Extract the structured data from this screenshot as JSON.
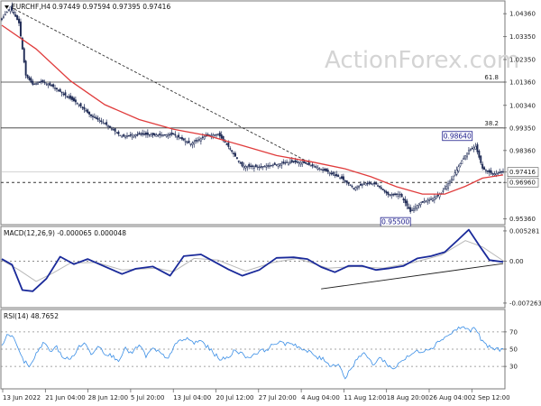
{
  "chart_data": [
    {
      "type": "candlestick",
      "panel": "price",
      "title": "EURCHF,H4",
      "ohlc_readout": "0.97449 0.97594 0.97395 0.97416",
      "watermark": "ActionForex.com",
      "ylim": [
        0.9515,
        1.0488
      ],
      "y_ticks": [
        "1.04360",
        "1.03350",
        "1.02350",
        "1.01360",
        "1.00340",
        "0.99350",
        "0.98360",
        "0.97416",
        "0.96960",
        "0.95360"
      ],
      "y_tick_values": [
        1.0436,
        1.0335,
        1.0235,
        1.0136,
        1.0034,
        0.9935,
        0.9836,
        0.97416,
        0.9696,
        0.9536
      ],
      "x_labels": [
        "13 Jun 2022",
        "21 Jun 04:00",
        "28 Jun 12:00",
        "5 Jul 20:00",
        "13 Jul 04:00",
        "20 Jul 12:00",
        "27 Jul 20:00",
        "4 Aug 04:00",
        "11 Aug 12:00",
        "18 Aug 20:00",
        "26 Aug 04:00",
        "2 Sep 12:00"
      ],
      "fib_levels": [
        {
          "label": "61.8",
          "value": 1.0136
        },
        {
          "label": "38.2",
          "value": 0.9935
        }
      ],
      "support_dashed": 0.9696,
      "current_price": 0.97416,
      "annotations": [
        {
          "text": "0.98640",
          "value": 0.9864
        },
        {
          "text": "0.95500",
          "value": 0.955
        }
      ],
      "anchors": [
        {
          "x": 0,
          "y": 1.0412
        },
        {
          "x": 5,
          "y": 1.0465
        },
        {
          "x": 10,
          "y": 1.0395
        },
        {
          "x": 14,
          "y": 1.0166
        },
        {
          "x": 18,
          "y": 1.0126
        },
        {
          "x": 24,
          "y": 1.0138
        },
        {
          "x": 30,
          "y": 1.0116
        },
        {
          "x": 36,
          "y": 1.0083
        },
        {
          "x": 44,
          "y": 1.0044
        },
        {
          "x": 52,
          "y": 0.9988
        },
        {
          "x": 60,
          "y": 0.9955
        },
        {
          "x": 70,
          "y": 0.9897
        },
        {
          "x": 80,
          "y": 0.9907
        },
        {
          "x": 90,
          "y": 0.9904
        },
        {
          "x": 100,
          "y": 0.9907
        },
        {
          "x": 110,
          "y": 0.9865
        },
        {
          "x": 118,
          "y": 0.9897
        },
        {
          "x": 126,
          "y": 0.9908
        },
        {
          "x": 132,
          "y": 0.9853
        },
        {
          "x": 140,
          "y": 0.9768
        },
        {
          "x": 150,
          "y": 0.9764
        },
        {
          "x": 160,
          "y": 0.9775
        },
        {
          "x": 168,
          "y": 0.9786
        },
        {
          "x": 175,
          "y": 0.9784
        },
        {
          "x": 182,
          "y": 0.9766
        },
        {
          "x": 190,
          "y": 0.9743
        },
        {
          "x": 198,
          "y": 0.9714
        },
        {
          "x": 205,
          "y": 0.9671
        },
        {
          "x": 212,
          "y": 0.9693
        },
        {
          "x": 218,
          "y": 0.9689
        },
        {
          "x": 225,
          "y": 0.9643
        },
        {
          "x": 232,
          "y": 0.9645
        },
        {
          "x": 238,
          "y": 0.9568
        },
        {
          "x": 244,
          "y": 0.9609
        },
        {
          "x": 250,
          "y": 0.9623
        },
        {
          "x": 256,
          "y": 0.9649
        },
        {
          "x": 262,
          "y": 0.9711
        },
        {
          "x": 268,
          "y": 0.9792
        },
        {
          "x": 272,
          "y": 0.9836
        },
        {
          "x": 276,
          "y": 0.9854
        },
        {
          "x": 280,
          "y": 0.9758
        },
        {
          "x": 286,
          "y": 0.9732
        },
        {
          "x": 292,
          "y": 0.9742
        }
      ],
      "moving_average": [
        {
          "x": 0,
          "y": 1.0385
        },
        {
          "x": 20,
          "y": 1.0281
        },
        {
          "x": 40,
          "y": 1.0141
        },
        {
          "x": 60,
          "y": 1.0037
        },
        {
          "x": 80,
          "y": 0.9972
        },
        {
          "x": 100,
          "y": 0.9929
        },
        {
          "x": 120,
          "y": 0.9901
        },
        {
          "x": 140,
          "y": 0.9858
        },
        {
          "x": 160,
          "y": 0.9814
        },
        {
          "x": 180,
          "y": 0.9787
        },
        {
          "x": 200,
          "y": 0.9756
        },
        {
          "x": 215,
          "y": 0.9721
        },
        {
          "x": 230,
          "y": 0.9677
        },
        {
          "x": 245,
          "y": 0.9645
        },
        {
          "x": 258,
          "y": 0.9645
        },
        {
          "x": 270,
          "y": 0.9679
        },
        {
          "x": 280,
          "y": 0.9715
        },
        {
          "x": 292,
          "y": 0.9729
        }
      ],
      "downtrend_line": [
        {
          "x": 5,
          "y": 1.0465
        },
        {
          "x": 180,
          "y": 0.978
        }
      ],
      "colors": {
        "candle_up": "#ffffff",
        "candle_down": "#1e2a55",
        "ma": "#e03c3c",
        "levels": "#333333",
        "tag_border": "#1a1a8a"
      }
    },
    {
      "type": "line",
      "panel": "macd",
      "title": "MACD(12,26,9) -0.000065 0.000048",
      "y_ticks": [
        "0.005281",
        "0.00",
        "-0.007263"
      ],
      "y_tick_values": [
        0.005281,
        0.0,
        -0.007263
      ],
      "ylim": [
        -0.0079,
        0.0059
      ],
      "series": [
        {
          "name": "MACD",
          "points": [
            {
              "x": 0,
              "y": 0.0004
            },
            {
              "x": 6,
              "y": -0.0006
            },
            {
              "x": 12,
              "y": -0.005
            },
            {
              "x": 18,
              "y": -0.0052
            },
            {
              "x": 26,
              "y": -0.003
            },
            {
              "x": 34,
              "y": 0.0008
            },
            {
              "x": 42,
              "y": -0.0005
            },
            {
              "x": 50,
              "y": 0.0004
            },
            {
              "x": 60,
              "y": -0.0009
            },
            {
              "x": 70,
              "y": -0.0022
            },
            {
              "x": 78,
              "y": -0.0013
            },
            {
              "x": 88,
              "y": -0.0009
            },
            {
              "x": 98,
              "y": -0.0025
            },
            {
              "x": 106,
              "y": 0.0009
            },
            {
              "x": 116,
              "y": 0.0012
            },
            {
              "x": 124,
              "y": -0.0001
            },
            {
              "x": 132,
              "y": -0.0014
            },
            {
              "x": 140,
              "y": -0.0025
            },
            {
              "x": 150,
              "y": -0.0015
            },
            {
              "x": 160,
              "y": 0.0006
            },
            {
              "x": 170,
              "y": 0.0007
            },
            {
              "x": 178,
              "y": 0.0004
            },
            {
              "x": 186,
              "y": -0.001
            },
            {
              "x": 194,
              "y": -0.0019
            },
            {
              "x": 202,
              "y": -0.0008
            },
            {
              "x": 210,
              "y": -0.0008
            },
            {
              "x": 218,
              "y": -0.0015
            },
            {
              "x": 226,
              "y": -0.0012
            },
            {
              "x": 234,
              "y": -0.0008
            },
            {
              "x": 242,
              "y": 0.0005
            },
            {
              "x": 250,
              "y": 0.0009
            },
            {
              "x": 258,
              "y": 0.0016
            },
            {
              "x": 266,
              "y": 0.0038
            },
            {
              "x": 272,
              "y": 0.0055
            },
            {
              "x": 278,
              "y": 0.0028
            },
            {
              "x": 284,
              "y": 0.0002
            },
            {
              "x": 292,
              "y": -0.0001
            }
          ],
          "color": "#1a2a9a"
        },
        {
          "name": "Signal",
          "points": [
            {
              "x": 0,
              "y": 0.0002
            },
            {
              "x": 10,
              "y": -0.0015
            },
            {
              "x": 20,
              "y": -0.0035
            },
            {
              "x": 30,
              "y": -0.002
            },
            {
              "x": 40,
              "y": -0.0003
            },
            {
              "x": 55,
              "y": -0.0002
            },
            {
              "x": 70,
              "y": -0.0015
            },
            {
              "x": 90,
              "y": -0.0012
            },
            {
              "x": 100,
              "y": -0.0018
            },
            {
              "x": 112,
              "y": 0.0005
            },
            {
              "x": 126,
              "y": 0.0002
            },
            {
              "x": 142,
              "y": -0.0017
            },
            {
              "x": 158,
              "y": -0.0002
            },
            {
              "x": 172,
              "y": 0.0005
            },
            {
              "x": 190,
              "y": -0.0012
            },
            {
              "x": 206,
              "y": -0.0009
            },
            {
              "x": 222,
              "y": -0.0012
            },
            {
              "x": 240,
              "y": -0.0002
            },
            {
              "x": 256,
              "y": 0.0011
            },
            {
              "x": 270,
              "y": 0.0036
            },
            {
              "x": 280,
              "y": 0.0025
            },
            {
              "x": 292,
              "y": 0.0001
            }
          ],
          "color": "#b8b8b8"
        }
      ],
      "trendline": [
        {
          "x": 186,
          "y": -0.0048
        },
        {
          "x": 292,
          "y": -0.0004
        }
      ]
    },
    {
      "type": "line",
      "panel": "rsi",
      "title": "RSI(14) 48.7652",
      "y_ticks": [
        "70",
        "50",
        "30"
      ],
      "y_tick_values": [
        70,
        50,
        30
      ],
      "ylim": [
        5,
        95
      ],
      "series": [
        {
          "name": "RSI",
          "points": [
            {
              "x": 0,
              "y": 55
            },
            {
              "x": 4,
              "y": 68
            },
            {
              "x": 8,
              "y": 60
            },
            {
              "x": 12,
              "y": 38
            },
            {
              "x": 16,
              "y": 30
            },
            {
              "x": 20,
              "y": 44
            },
            {
              "x": 24,
              "y": 58
            },
            {
              "x": 28,
              "y": 48
            },
            {
              "x": 32,
              "y": 52
            },
            {
              "x": 36,
              "y": 40
            },
            {
              "x": 40,
              "y": 38
            },
            {
              "x": 44,
              "y": 50
            },
            {
              "x": 48,
              "y": 58
            },
            {
              "x": 52,
              "y": 44
            },
            {
              "x": 56,
              "y": 55
            },
            {
              "x": 60,
              "y": 46
            },
            {
              "x": 64,
              "y": 42
            },
            {
              "x": 68,
              "y": 38
            },
            {
              "x": 72,
              "y": 50
            },
            {
              "x": 76,
              "y": 45
            },
            {
              "x": 80,
              "y": 55
            },
            {
              "x": 84,
              "y": 42
            },
            {
              "x": 88,
              "y": 50
            },
            {
              "x": 92,
              "y": 46
            },
            {
              "x": 96,
              "y": 38
            },
            {
              "x": 100,
              "y": 52
            },
            {
              "x": 104,
              "y": 60
            },
            {
              "x": 108,
              "y": 62
            },
            {
              "x": 112,
              "y": 57
            },
            {
              "x": 116,
              "y": 60
            },
            {
              "x": 120,
              "y": 52
            },
            {
              "x": 124,
              "y": 44
            },
            {
              "x": 128,
              "y": 38
            },
            {
              "x": 132,
              "y": 40
            },
            {
              "x": 136,
              "y": 50
            },
            {
              "x": 140,
              "y": 44
            },
            {
              "x": 144,
              "y": 40
            },
            {
              "x": 148,
              "y": 46
            },
            {
              "x": 152,
              "y": 48
            },
            {
              "x": 156,
              "y": 52
            },
            {
              "x": 160,
              "y": 58
            },
            {
              "x": 164,
              "y": 56
            },
            {
              "x": 168,
              "y": 58
            },
            {
              "x": 172,
              "y": 54
            },
            {
              "x": 176,
              "y": 48
            },
            {
              "x": 180,
              "y": 46
            },
            {
              "x": 184,
              "y": 40
            },
            {
              "x": 188,
              "y": 38
            },
            {
              "x": 192,
              "y": 30
            },
            {
              "x": 196,
              "y": 34
            },
            {
              "x": 200,
              "y": 16
            },
            {
              "x": 204,
              "y": 30
            },
            {
              "x": 208,
              "y": 42
            },
            {
              "x": 212,
              "y": 44
            },
            {
              "x": 216,
              "y": 32
            },
            {
              "x": 220,
              "y": 40
            },
            {
              "x": 224,
              "y": 34
            },
            {
              "x": 228,
              "y": 26
            },
            {
              "x": 232,
              "y": 36
            },
            {
              "x": 236,
              "y": 40
            },
            {
              "x": 240,
              "y": 46
            },
            {
              "x": 244,
              "y": 48
            },
            {
              "x": 248,
              "y": 50
            },
            {
              "x": 252,
              "y": 54
            },
            {
              "x": 256,
              "y": 62
            },
            {
              "x": 260,
              "y": 66
            },
            {
              "x": 264,
              "y": 72
            },
            {
              "x": 268,
              "y": 76
            },
            {
              "x": 272,
              "y": 72
            },
            {
              "x": 276,
              "y": 74
            },
            {
              "x": 280,
              "y": 58
            },
            {
              "x": 284,
              "y": 52
            },
            {
              "x": 288,
              "y": 50
            },
            {
              "x": 292,
              "y": 49
            }
          ],
          "color": "#3a8ee6"
        }
      ],
      "reference_levels": [
        70,
        50,
        30
      ]
    }
  ]
}
